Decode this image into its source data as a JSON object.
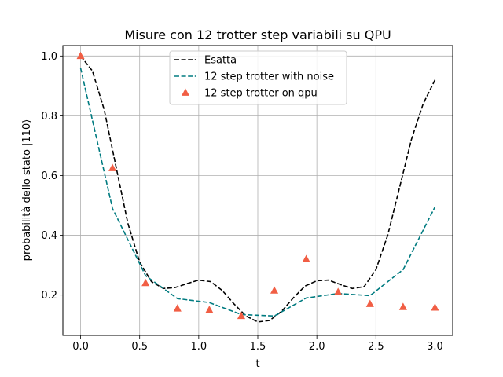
{
  "chart_data": {
    "type": "line",
    "title": "Misure con 12 trotter step variabili su QPU",
    "xlabel": "t",
    "ylabel": "probabilità dello stato |110⟩",
    "xlim": [
      -0.15,
      3.15
    ],
    "ylim": [
      0.065,
      1.035
    ],
    "xticks": [
      0.0,
      0.5,
      1.0,
      1.5,
      2.0,
      2.5,
      3.0
    ],
    "xtick_labels": [
      "0.0",
      "0.5",
      "1.0",
      "1.5",
      "2.0",
      "2.5",
      "3.0"
    ],
    "yticks": [
      0.2,
      0.4,
      0.6,
      0.8,
      1.0
    ],
    "ytick_labels": [
      "0.2",
      "0.4",
      "0.6",
      "0.8",
      "1.0"
    ],
    "grid": true,
    "legend_position": "top-center",
    "series": [
      {
        "name": "Esatta",
        "kind": "line",
        "style": "dashed",
        "color": "#000000",
        "x": [
          0.0,
          0.1,
          0.2,
          0.3,
          0.4,
          0.5,
          0.6,
          0.7,
          0.8,
          0.9,
          1.0,
          1.1,
          1.2,
          1.3,
          1.4,
          1.5,
          1.6,
          1.7,
          1.8,
          1.9,
          2.0,
          2.1,
          2.2,
          2.3,
          2.4,
          2.5,
          2.6,
          2.7,
          2.8,
          2.9,
          3.0
        ],
        "y": [
          1.0,
          0.95,
          0.82,
          0.63,
          0.44,
          0.31,
          0.245,
          0.222,
          0.225,
          0.238,
          0.25,
          0.245,
          0.215,
          0.17,
          0.13,
          0.11,
          0.115,
          0.145,
          0.19,
          0.23,
          0.248,
          0.25,
          0.235,
          0.222,
          0.228,
          0.285,
          0.4,
          0.56,
          0.72,
          0.84,
          0.92
        ]
      },
      {
        "name": "12 step trotter with noise",
        "kind": "line",
        "style": "dashed",
        "color": "#007b80",
        "x": [
          0.0,
          0.27,
          0.55,
          0.82,
          1.09,
          1.36,
          1.64,
          1.91,
          2.18,
          2.45,
          2.73,
          3.0
        ],
        "y": [
          0.96,
          0.49,
          0.265,
          0.188,
          0.175,
          0.135,
          0.13,
          0.19,
          0.205,
          0.198,
          0.285,
          0.495
        ]
      },
      {
        "name": "12 step trotter on qpu",
        "kind": "scatter",
        "marker": "triangle",
        "color": "#f15e44",
        "x": [
          0.0,
          0.27,
          0.55,
          0.82,
          1.09,
          1.36,
          1.64,
          1.91,
          2.18,
          2.45,
          2.73,
          3.0
        ],
        "y": [
          1.0,
          0.625,
          0.24,
          0.155,
          0.15,
          0.13,
          0.215,
          0.32,
          0.21,
          0.17,
          0.16,
          0.158
        ]
      }
    ]
  }
}
